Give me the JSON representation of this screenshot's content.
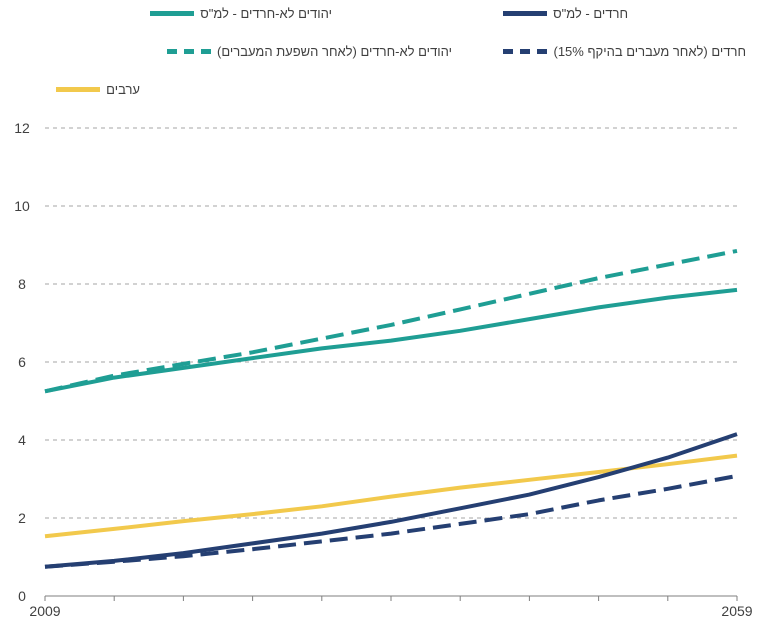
{
  "colors": {
    "teal": "#1f9e94",
    "navy": "#253f72",
    "yellow": "#f2c94c",
    "grid": "#a6a6a6",
    "axis": "#7f7f7f",
    "text": "#404040"
  },
  "chart_data": {
    "type": "line",
    "ylim": [
      0,
      12
    ],
    "yticks": [
      "0",
      "2",
      "4",
      "6",
      "8",
      "10",
      "12"
    ],
    "xlim": [
      2009,
      2059
    ],
    "xticks": [
      "2009",
      "2059"
    ],
    "grid": true,
    "legend_position": "top",
    "series": [
      {
        "name": "יהודים לא-חרדים - למ\"ס",
        "color": "#1f9e94",
        "style": "solid",
        "x": [
          2009,
          2014,
          2019,
          2024,
          2029,
          2034,
          2039,
          2044,
          2049,
          2054,
          2059
        ],
        "values": [
          5.25,
          5.6,
          5.85,
          6.1,
          6.35,
          6.55,
          6.8,
          7.1,
          7.4,
          7.65,
          7.85
        ]
      },
      {
        "name": "יהודים לא-חרדים (לאחר השפעת המעברים)",
        "color": "#1f9e94",
        "style": "dashed",
        "x": [
          2009,
          2014,
          2019,
          2024,
          2029,
          2034,
          2039,
          2044,
          2049,
          2054,
          2059
        ],
        "values": [
          5.25,
          5.65,
          5.95,
          6.25,
          6.6,
          6.95,
          7.35,
          7.75,
          8.15,
          8.5,
          8.85
        ]
      },
      {
        "name": "חרדים - למ\"ס",
        "color": "#253f72",
        "style": "solid",
        "x": [
          2009,
          2014,
          2019,
          2024,
          2029,
          2034,
          2039,
          2044,
          2049,
          2054,
          2059
        ],
        "values": [
          0.75,
          0.9,
          1.1,
          1.35,
          1.6,
          1.9,
          2.25,
          2.6,
          3.05,
          3.55,
          4.15
        ]
      },
      {
        "name": "חרדים (לאחר מעברים בהיקף 15%)",
        "color": "#253f72",
        "style": "dashed",
        "x": [
          2009,
          2014,
          2019,
          2024,
          2029,
          2034,
          2039,
          2044,
          2049,
          2054,
          2059
        ],
        "values": [
          0.75,
          0.88,
          1.02,
          1.2,
          1.4,
          1.6,
          1.85,
          2.1,
          2.45,
          2.75,
          3.08
        ]
      },
      {
        "name": "ערבים",
        "color": "#f2c94c",
        "style": "solid",
        "x": [
          2009,
          2014,
          2019,
          2024,
          2029,
          2034,
          2039,
          2044,
          2049,
          2054,
          2059
        ],
        "values": [
          1.53,
          1.72,
          1.92,
          2.1,
          2.3,
          2.55,
          2.78,
          2.98,
          3.18,
          3.38,
          3.6
        ]
      }
    ]
  }
}
